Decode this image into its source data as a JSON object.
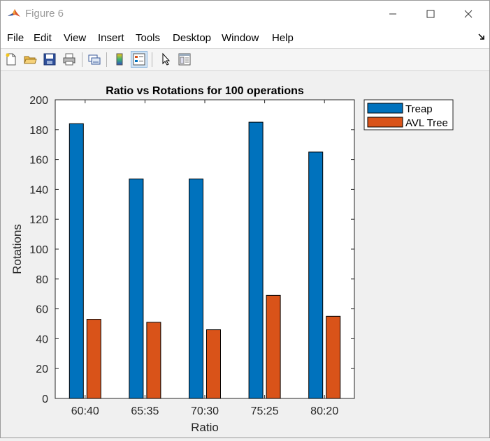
{
  "window": {
    "title": "Figure 6"
  },
  "menu": {
    "items": [
      "File",
      "Edit",
      "View",
      "Insert",
      "Tools",
      "Desktop",
      "Window",
      "Help"
    ]
  },
  "toolbar": {
    "tools": [
      "new-figure-icon",
      "open-file-icon",
      "save-icon",
      "print-icon",
      "link-plot-icon",
      "colorbar-icon",
      "legend-icon",
      "pointer-icon",
      "property-inspector-icon"
    ]
  },
  "colors": {
    "treap": "#0072BD",
    "avl": "#D95319"
  },
  "chart_data": {
    "type": "bar",
    "title": "Ratio vs Rotations for 100 operations",
    "xlabel": "Ratio",
    "ylabel": "Rotations",
    "categories": [
      "60:40",
      "65:35",
      "70:30",
      "75:25",
      "80:20"
    ],
    "ylim": [
      0,
      200
    ],
    "yticks": [
      0,
      20,
      40,
      60,
      80,
      100,
      120,
      140,
      160,
      180,
      200
    ],
    "series": [
      {
        "name": "Treap",
        "values": [
          184,
          147,
          147,
          185,
          165
        ]
      },
      {
        "name": "AVL Tree",
        "values": [
          53,
          51,
          46,
          69,
          55
        ]
      }
    ],
    "legend": "outside-top-right",
    "grid": false
  }
}
